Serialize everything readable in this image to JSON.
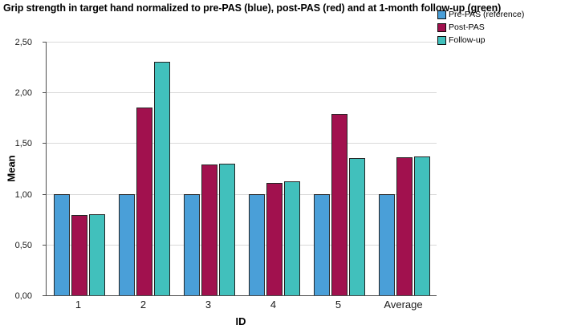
{
  "chart_data": {
    "type": "bar",
    "title": "Grip strength in target hand normalized to pre-PAS (blue), post-PAS (red) and at 1-month follow-up (green)",
    "xlabel": "ID",
    "ylabel": "Mean",
    "categories": [
      "1",
      "2",
      "3",
      "4",
      "5",
      "Average"
    ],
    "series": [
      {
        "name": "Pre-PAS (reference)",
        "color": "#4A9FD8",
        "values": [
          1.0,
          1.0,
          1.0,
          1.0,
          1.0,
          1.0
        ]
      },
      {
        "name": "Post-PAS",
        "color": "#A1114E",
        "values": [
          0.79,
          1.85,
          1.29,
          1.11,
          1.79,
          1.36
        ]
      },
      {
        "name": "Follow-up",
        "color": "#41C0BC",
        "values": [
          0.8,
          2.3,
          1.3,
          1.12,
          1.35,
          1.37
        ]
      }
    ],
    "ylim": [
      0,
      2.5
    ],
    "yticks": [
      0,
      0.5,
      1.0,
      1.5,
      2.0,
      2.5
    ],
    "ytick_labels": [
      "0,00",
      "0,50",
      "1,00",
      "1,50",
      "2,00",
      "2,50"
    ],
    "grid": true,
    "legend_position": "top-right",
    "colors": {
      "axis": "#4d4d4d",
      "gridline": "#d9d9d9",
      "bar_border": "#262626",
      "text": "#000000"
    }
  }
}
